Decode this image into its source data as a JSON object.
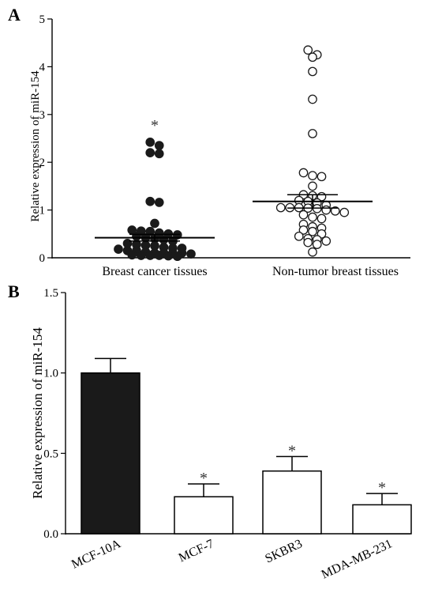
{
  "chart_data": [
    {
      "panel": "A",
      "type": "scatter",
      "ylabel": "Relative expression of miR-154",
      "ylim": [
        0,
        5
      ],
      "yticks": [
        0,
        1,
        2,
        3,
        4,
        5
      ],
      "categories": [
        "Breast cancer tissues",
        "Non-tumor breast tissues"
      ],
      "series": [
        {
          "category": "Breast cancer tissues",
          "marker": "filled",
          "color": "#1a1a1a",
          "mean": 0.42,
          "sem": 0.07,
          "significance": "*",
          "values": [
            2.42,
            2.35,
            2.2,
            2.18,
            1.18,
            1.16,
            0.72,
            0.58,
            0.56,
            0.55,
            0.52,
            0.5,
            0.48,
            0.45,
            0.42,
            0.4,
            0.38,
            0.35,
            0.3,
            0.28,
            0.26,
            0.25,
            0.22,
            0.2,
            0.2,
            0.18,
            0.15,
            0.15,
            0.12,
            0.1,
            0.1,
            0.1,
            0.1,
            0.08,
            0.06,
            0.05,
            0.05,
            0.05,
            0.04,
            0.03
          ]
        },
        {
          "category": "Non-tumor breast tissues",
          "marker": "open",
          "color": "#1a1a1a",
          "mean": 1.18,
          "sem": 0.14,
          "values": [
            4.35,
            4.25,
            4.2,
            3.9,
            3.32,
            2.6,
            1.78,
            1.72,
            1.7,
            1.5,
            1.32,
            1.3,
            1.28,
            1.2,
            1.18,
            1.15,
            1.1,
            1.05,
            1.05,
            1.05,
            1.04,
            1.03,
            1.0,
            0.98,
            0.95,
            0.9,
            0.85,
            0.82,
            0.7,
            0.65,
            0.62,
            0.58,
            0.55,
            0.5,
            0.45,
            0.4,
            0.38,
            0.35,
            0.32,
            0.28,
            0.12
          ]
        }
      ]
    },
    {
      "panel": "B",
      "type": "bar",
      "ylabel": "Relative expression of miR-154",
      "ylim": [
        0,
        1.5
      ],
      "yticks": [
        "0.0",
        "0.5",
        "1.0",
        "1.5"
      ],
      "categories": [
        "MCF-10A",
        "MCF-7",
        "SKBR3",
        "MDA-MB-231"
      ],
      "values": [
        1.0,
        0.23,
        0.39,
        0.18
      ],
      "errors": [
        0.09,
        0.08,
        0.09,
        0.07
      ],
      "significance": [
        "",
        "*",
        "*",
        "*"
      ],
      "fills": [
        "#1a1a1a",
        "#ffffff",
        "#ffffff",
        "#ffffff"
      ]
    }
  ]
}
